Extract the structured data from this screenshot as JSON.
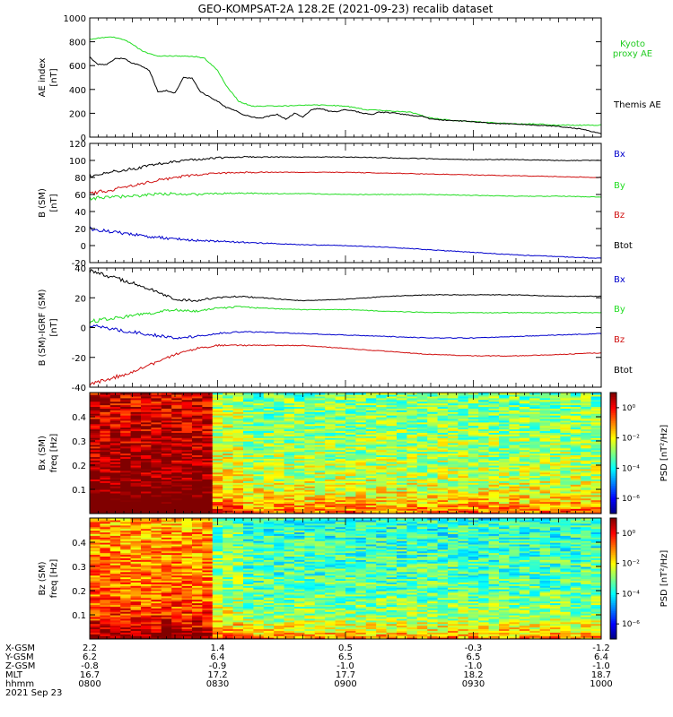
{
  "title": "GEO-KOMPSAT-2A 128.2E (2021-09-23) recalib dataset",
  "colors": {
    "black": "#000000",
    "red": "#d01010",
    "green": "#22dd22",
    "blue": "#0000cc",
    "kyoto": "#22cc22"
  },
  "chart_data": [
    {
      "type": "line",
      "ylabel_line1": "AE index",
      "ylabel_line2": "[nT]",
      "ylim": [
        0,
        1000
      ],
      "yticks": [
        "0",
        "200",
        "400",
        "600",
        "800",
        "1000"
      ],
      "yticks_values": [
        0,
        200,
        400,
        600,
        800,
        1000
      ],
      "legend": [
        "Kyoto",
        "proxy AE",
        "Themis AE"
      ],
      "series": [
        {
          "name": "Kyoto proxy AE",
          "color": "green",
          "x": [
            0,
            2,
            5,
            8,
            10,
            12,
            14,
            16,
            18,
            20,
            22,
            25,
            27,
            30,
            32,
            35,
            38,
            42,
            45,
            50,
            55,
            60,
            65,
            70,
            75,
            80,
            85,
            90,
            95,
            100,
            105,
            110,
            115,
            120
          ],
          "values": [
            820,
            830,
            840,
            820,
            780,
            730,
            700,
            680,
            680,
            680,
            680,
            675,
            660,
            560,
            430,
            300,
            260,
            260,
            260,
            270,
            270,
            260,
            230,
            220,
            210,
            160,
            140,
            130,
            120,
            110,
            110,
            100,
            100,
            100
          ]
        },
        {
          "name": "Themis AE",
          "color": "black",
          "x": [
            0,
            2,
            4,
            6,
            8,
            10,
            12,
            14,
            16,
            18,
            20,
            22,
            24,
            26,
            28,
            30,
            32,
            34,
            36,
            38,
            40,
            42,
            44,
            46,
            48,
            50,
            52,
            54,
            56,
            58,
            60,
            62,
            64,
            66,
            68,
            70,
            72,
            74,
            76,
            78,
            80,
            85,
            90,
            95,
            100,
            105,
            110,
            115,
            120
          ],
          "values": [
            670,
            610,
            610,
            660,
            660,
            620,
            600,
            560,
            380,
            390,
            370,
            500,
            495,
            380,
            340,
            300,
            250,
            225,
            190,
            170,
            160,
            175,
            190,
            150,
            200,
            170,
            230,
            240,
            220,
            215,
            230,
            220,
            200,
            190,
            210,
            205,
            200,
            190,
            180,
            175,
            150,
            140,
            130,
            115,
            110,
            100,
            90,
            70,
            30
          ]
        }
      ]
    },
    {
      "type": "line",
      "ylabel_line1": "B (SM)",
      "ylabel_line2": "[nT]",
      "ylim": [
        -20,
        120
      ],
      "yticks": [
        "-20",
        "0",
        "20",
        "40",
        "60",
        "80",
        "100",
        "120"
      ],
      "yticks_values": [
        -20,
        0,
        20,
        40,
        60,
        80,
        100,
        120
      ],
      "legend": [
        "Bx",
        "By",
        "Bz",
        "Btot"
      ],
      "series": [
        {
          "name": "Btot",
          "color": "black",
          "x": [
            0,
            5,
            10,
            15,
            20,
            25,
            30,
            35,
            40,
            50,
            60,
            70,
            80,
            90,
            100,
            110,
            120
          ],
          "values": [
            82,
            86,
            90,
            95,
            99,
            101,
            103,
            104,
            104,
            104,
            104,
            103,
            102,
            101,
            101,
            100,
            100
          ]
        },
        {
          "name": "Bz",
          "color": "red",
          "x": [
            0,
            5,
            10,
            15,
            20,
            25,
            30,
            35,
            40,
            50,
            60,
            70,
            80,
            90,
            100,
            110,
            120
          ],
          "values": [
            61,
            65,
            70,
            76,
            80,
            83,
            85,
            86,
            86,
            86,
            86,
            85,
            84,
            83,
            82,
            81,
            80
          ]
        },
        {
          "name": "By",
          "color": "green",
          "x": [
            0,
            5,
            10,
            15,
            20,
            25,
            30,
            35,
            40,
            50,
            60,
            70,
            80,
            90,
            100,
            110,
            120
          ],
          "values": [
            55,
            57,
            58,
            60,
            61,
            60,
            61,
            62,
            61,
            61,
            60,
            60,
            60,
            59,
            58,
            58,
            57
          ]
        },
        {
          "name": "Bx",
          "color": "blue",
          "x": [
            0,
            5,
            10,
            15,
            20,
            25,
            30,
            35,
            40,
            50,
            60,
            70,
            80,
            90,
            100,
            110,
            120
          ],
          "values": [
            20,
            16,
            13,
            10,
            8,
            6,
            5,
            4,
            3,
            1,
            0,
            -2,
            -5,
            -8,
            -11,
            -13,
            -15
          ]
        }
      ]
    },
    {
      "type": "line",
      "ylabel_line1": "B (SM)-IGRF (SM)",
      "ylabel_line2": "[nT]",
      "ylim": [
        -40,
        40
      ],
      "yticks": [
        "-40",
        "-20",
        "0",
        "20",
        "40"
      ],
      "yticks_values": [
        -40,
        -20,
        0,
        20,
        40
      ],
      "legend": [
        "Bx",
        "By",
        "Bz",
        "Btot"
      ],
      "series": [
        {
          "name": "Btot",
          "color": "black",
          "x": [
            0,
            5,
            10,
            15,
            20,
            25,
            30,
            35,
            40,
            50,
            60,
            70,
            80,
            90,
            100,
            110,
            120
          ],
          "values": [
            38,
            34,
            30,
            25,
            19,
            18,
            20,
            21,
            20,
            18,
            19,
            21,
            22,
            22,
            22,
            21,
            21
          ]
        },
        {
          "name": "By",
          "color": "green",
          "x": [
            0,
            5,
            10,
            15,
            20,
            25,
            30,
            35,
            40,
            50,
            60,
            70,
            80,
            90,
            100,
            110,
            120
          ],
          "values": [
            4,
            6,
            8,
            10,
            12,
            11,
            13,
            14,
            13,
            12,
            12,
            11,
            10,
            10,
            10,
            10,
            10
          ]
        },
        {
          "name": "Bx",
          "color": "blue",
          "x": [
            0,
            5,
            10,
            15,
            20,
            25,
            30,
            35,
            40,
            50,
            60,
            70,
            80,
            90,
            100,
            110,
            120
          ],
          "values": [
            2,
            -1,
            -3,
            -5,
            -7,
            -6,
            -4,
            -3,
            -3,
            -4,
            -5,
            -6,
            -7,
            -7,
            -6,
            -5,
            -4
          ]
        },
        {
          "name": "Bz",
          "color": "red",
          "x": [
            0,
            5,
            10,
            15,
            20,
            25,
            30,
            35,
            40,
            50,
            60,
            70,
            80,
            90,
            100,
            110,
            120
          ],
          "values": [
            -38,
            -34,
            -30,
            -24,
            -18,
            -14,
            -12,
            -12,
            -12,
            -12,
            -14,
            -16,
            -18,
            -19,
            -19,
            -18,
            -17
          ]
        }
      ]
    },
    {
      "type": "heatmap",
      "ylabel_line1": "Bx (SM)",
      "ylabel_line2": "freq [Hz]",
      "ylim": [
        0,
        0.5
      ],
      "yticks": [
        "0.1",
        "0.2",
        "0.3",
        "0.4"
      ],
      "yticks_values": [
        0.1,
        0.2,
        0.3,
        0.4
      ],
      "colorbar_label": "PSD [nT²/Hz]",
      "colorbar_ticks": [
        "10⁰",
        "10⁻²",
        "10⁻⁴",
        "10⁻⁶"
      ],
      "colorbar_range_log10": [
        -7,
        1
      ],
      "baseline_log10": {
        "active_early": 1.0,
        "active_late": -2.4,
        "low_freq_boost": 2.0
      }
    },
    {
      "type": "heatmap",
      "ylabel_line1": "Bz (SM)",
      "ylabel_line2": "freq [Hz]",
      "ylim": [
        0,
        0.5
      ],
      "yticks": [
        "0.1",
        "0.2",
        "0.3",
        "0.4"
      ],
      "yticks_values": [
        0.1,
        0.2,
        0.3,
        0.4
      ],
      "colorbar_label": "PSD [nT²/Hz]",
      "colorbar_ticks": [
        "10⁰",
        "10⁻²",
        "10⁻⁴",
        "10⁻⁶"
      ],
      "colorbar_range_log10": [
        -7,
        1
      ],
      "baseline_log10": {
        "active_early": -0.6,
        "active_late": -3.0,
        "low_freq_boost": 2.2
      }
    }
  ],
  "time_axis": {
    "xlim_minutes": [
      0,
      120
    ],
    "row_labels": [
      "X-GSM",
      "Y-GSM",
      "Z-GSM",
      "MLT",
      "hhmm"
    ],
    "ticks": [
      {
        "minutes": 0,
        "values": [
          "2.2",
          "6.2",
          "-0.8",
          "16.7",
          "0800"
        ]
      },
      {
        "minutes": 30,
        "values": [
          "1.4",
          "6.4",
          "-0.9",
          "17.2",
          "0830"
        ]
      },
      {
        "minutes": 60,
        "values": [
          "0.5",
          "6.5",
          "-1.0",
          "17.7",
          "0900"
        ]
      },
      {
        "minutes": 90,
        "values": [
          "-0.3",
          "6.5",
          "-1.0",
          "18.2",
          "0930"
        ]
      },
      {
        "minutes": 120,
        "values": [
          "-1.2",
          "6.4",
          "-1.0",
          "18.7",
          "1000"
        ]
      }
    ],
    "date": "2021 Sep 23"
  }
}
